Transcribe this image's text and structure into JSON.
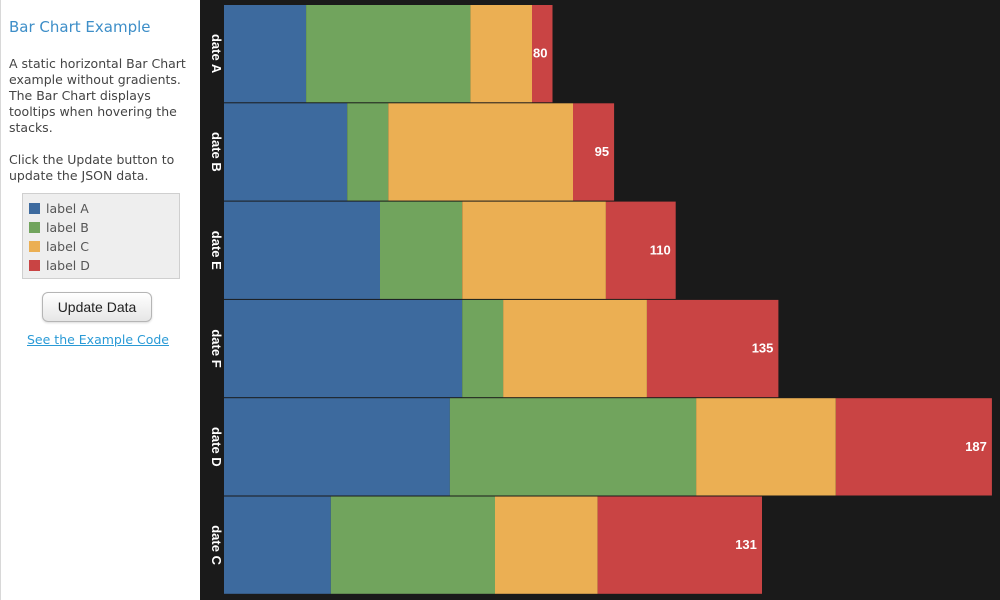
{
  "sidebar": {
    "title": "Bar Chart Example",
    "description1": "A static horizontal Bar Chart example without gradients. The Bar Chart displays tooltips when hovering the stacks.",
    "description2": "Click the Update button to update the JSON data.",
    "update_button": "Update Data",
    "example_link": "See the Example Code"
  },
  "chart_data": {
    "type": "bar",
    "orientation": "horizontal",
    "stacked": true,
    "categories": [
      "date A",
      "date B",
      "date E",
      "date F",
      "date D",
      "date C"
    ],
    "series": [
      {
        "name": "label A",
        "color": "#3d6a9e",
        "values": [
          20,
          30,
          38,
          58,
          55,
          26
        ]
      },
      {
        "name": "label B",
        "color": "#71a45d",
        "values": [
          40,
          10,
          20,
          10,
          60,
          40
        ]
      },
      {
        "name": "label C",
        "color": "#ebaf53",
        "values": [
          15,
          45,
          35,
          35,
          34,
          25
        ]
      },
      {
        "name": "label D",
        "color": "#c94444",
        "values": [
          5,
          10,
          17,
          32,
          38,
          40
        ]
      }
    ],
    "totals": [
      80,
      95,
      110,
      135,
      187,
      131
    ],
    "xlim": [
      0,
      188
    ],
    "legend": "sidebar",
    "grid": false
  }
}
